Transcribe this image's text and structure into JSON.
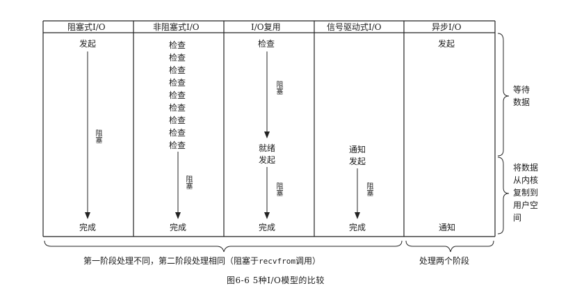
{
  "columns": [
    {
      "header": "阻塞式I/O",
      "top": "发起",
      "bottom": "完成",
      "arrow_label": "阻塞"
    },
    {
      "header": "非阻塞式I/O",
      "checks": [
        "检查",
        "检查",
        "检查",
        "检查",
        "检查",
        "检查",
        "检查",
        "检查",
        "检查"
      ],
      "bottom": "完成",
      "arrow_label": "阻塞"
    },
    {
      "header": "I/O复用",
      "top": "检查",
      "arrow1_label": "阻塞",
      "mid1": "就绪",
      "mid2": "发起",
      "arrow2_label": "阻塞",
      "bottom": "完成"
    },
    {
      "header": "信号驱动式I/O",
      "mid1": "通知",
      "mid2": "发起",
      "arrow_label": "阻塞",
      "bottom": "完成"
    },
    {
      "header": "异步I/O",
      "top": "发起",
      "bottom": "通知"
    }
  ],
  "side_labels": {
    "wait": "等待数据",
    "copy": "将数据从内核复制到用户空间"
  },
  "footer": {
    "left_prefix": "第一阶段处理不同，第二阶段处理相同（阻塞于",
    "left_code": "recvfrom",
    "left_suffix": "调用）",
    "right": "处理两个阶段"
  },
  "caption": "图6-6  5种I/O模型的比较"
}
